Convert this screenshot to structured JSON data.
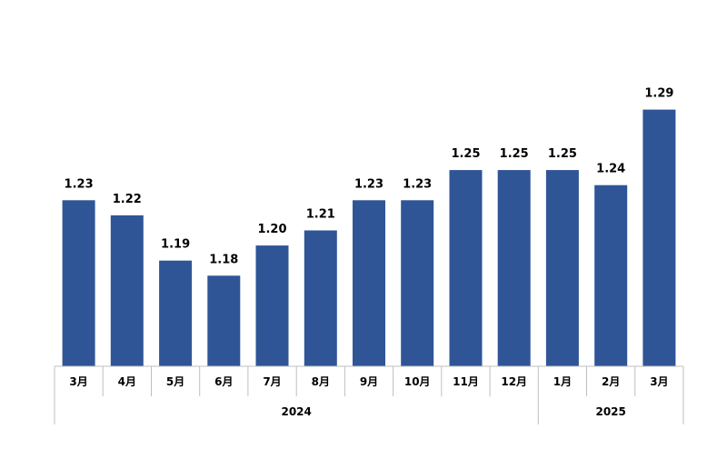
{
  "chart_data": {
    "type": "bar",
    "categories": [
      "3月",
      "4月",
      "5月",
      "6月",
      "7月",
      "8月",
      "9月",
      "10月",
      "11月",
      "12月",
      "1月",
      "2月",
      "3月"
    ],
    "values": [
      1.23,
      1.22,
      1.19,
      1.18,
      1.2,
      1.21,
      1.23,
      1.23,
      1.25,
      1.25,
      1.25,
      1.24,
      1.29
    ],
    "value_labels": [
      "1.23",
      "1.22",
      "1.19",
      "1.18",
      "1.20",
      "1.21",
      "1.23",
      "1.23",
      "1.25",
      "1.25",
      "1.25",
      "1.24",
      "1.29"
    ],
    "ylim": [
      1.12,
      1.3
    ],
    "grid": false,
    "bar_color": "#2f5597",
    "year_groups": [
      {
        "label": "2024",
        "start": 0,
        "end": 9
      },
      {
        "label": "2025",
        "start": 10,
        "end": 12
      }
    ]
  }
}
